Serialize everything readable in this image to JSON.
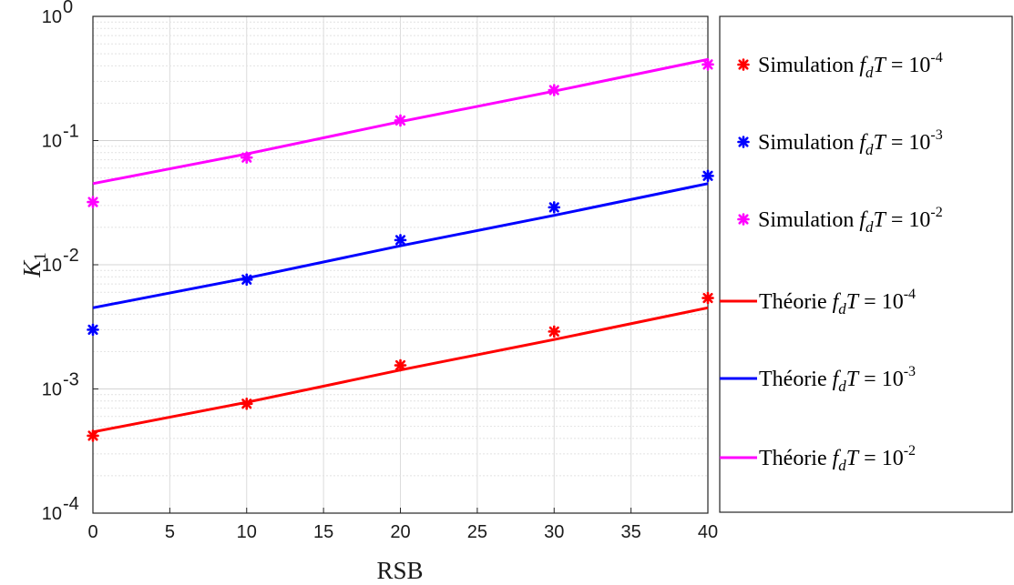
{
  "chart_data": {
    "type": "line",
    "title": "",
    "xlabel": "RSB",
    "ylabel": "K",
    "ylabel_sub": "1",
    "yscale": "log",
    "xlim": [
      0,
      40
    ],
    "ylim": [
      0.0001,
      1
    ],
    "xticks": [
      0,
      5,
      10,
      15,
      20,
      25,
      30,
      35,
      40
    ],
    "xtick_labels": [
      "0",
      "5",
      "10",
      "15",
      "20",
      "25",
      "30",
      "35",
      "40"
    ],
    "yticks": [
      0.0001,
      0.001,
      0.01,
      0.1,
      1
    ],
    "ytick_labels": [
      {
        "base": "10",
        "exp": "-4"
      },
      {
        "base": "10",
        "exp": "-3"
      },
      {
        "base": "10",
        "exp": "-2"
      },
      {
        "base": "10",
        "exp": "-1"
      },
      {
        "base": "10",
        "exp": "0"
      }
    ],
    "grid": true,
    "legend_position": "right-outside",
    "series": [
      {
        "name": "Simulation",
        "param": "-4",
        "kind": "marker",
        "color": "#ff0000",
        "x": [
          0,
          10,
          20,
          30,
          40
        ],
        "y": [
          0.00042,
          0.00076,
          0.00155,
          0.0029,
          0.0054
        ]
      },
      {
        "name": "Simulation",
        "param": "-3",
        "kind": "marker",
        "color": "#0000ff",
        "x": [
          0,
          10,
          20,
          30,
          40
        ],
        "y": [
          0.003,
          0.0076,
          0.0158,
          0.029,
          0.052
        ]
      },
      {
        "name": "Simulation",
        "param": "-2",
        "kind": "marker",
        "color": "#ff00ff",
        "x": [
          0,
          10,
          20,
          30,
          40
        ],
        "y": [
          0.032,
          0.073,
          0.145,
          0.255,
          0.41
        ]
      },
      {
        "name": "Théorie",
        "param": "-4",
        "kind": "line",
        "color": "#ff0000",
        "x": [
          0,
          10,
          20,
          30,
          40
        ],
        "y": [
          0.00045,
          0.00078,
          0.00142,
          0.0025,
          0.0045
        ]
      },
      {
        "name": "Théorie",
        "param": "-3",
        "kind": "line",
        "color": "#0000ff",
        "x": [
          0,
          10,
          20,
          30,
          40
        ],
        "y": [
          0.0045,
          0.0078,
          0.0142,
          0.025,
          0.045
        ]
      },
      {
        "name": "Théorie",
        "param": "-2",
        "kind": "line",
        "color": "#ff00ff",
        "x": [
          0,
          10,
          20,
          30,
          40
        ],
        "y": [
          0.045,
          0.078,
          0.142,
          0.25,
          0.45
        ]
      }
    ]
  }
}
